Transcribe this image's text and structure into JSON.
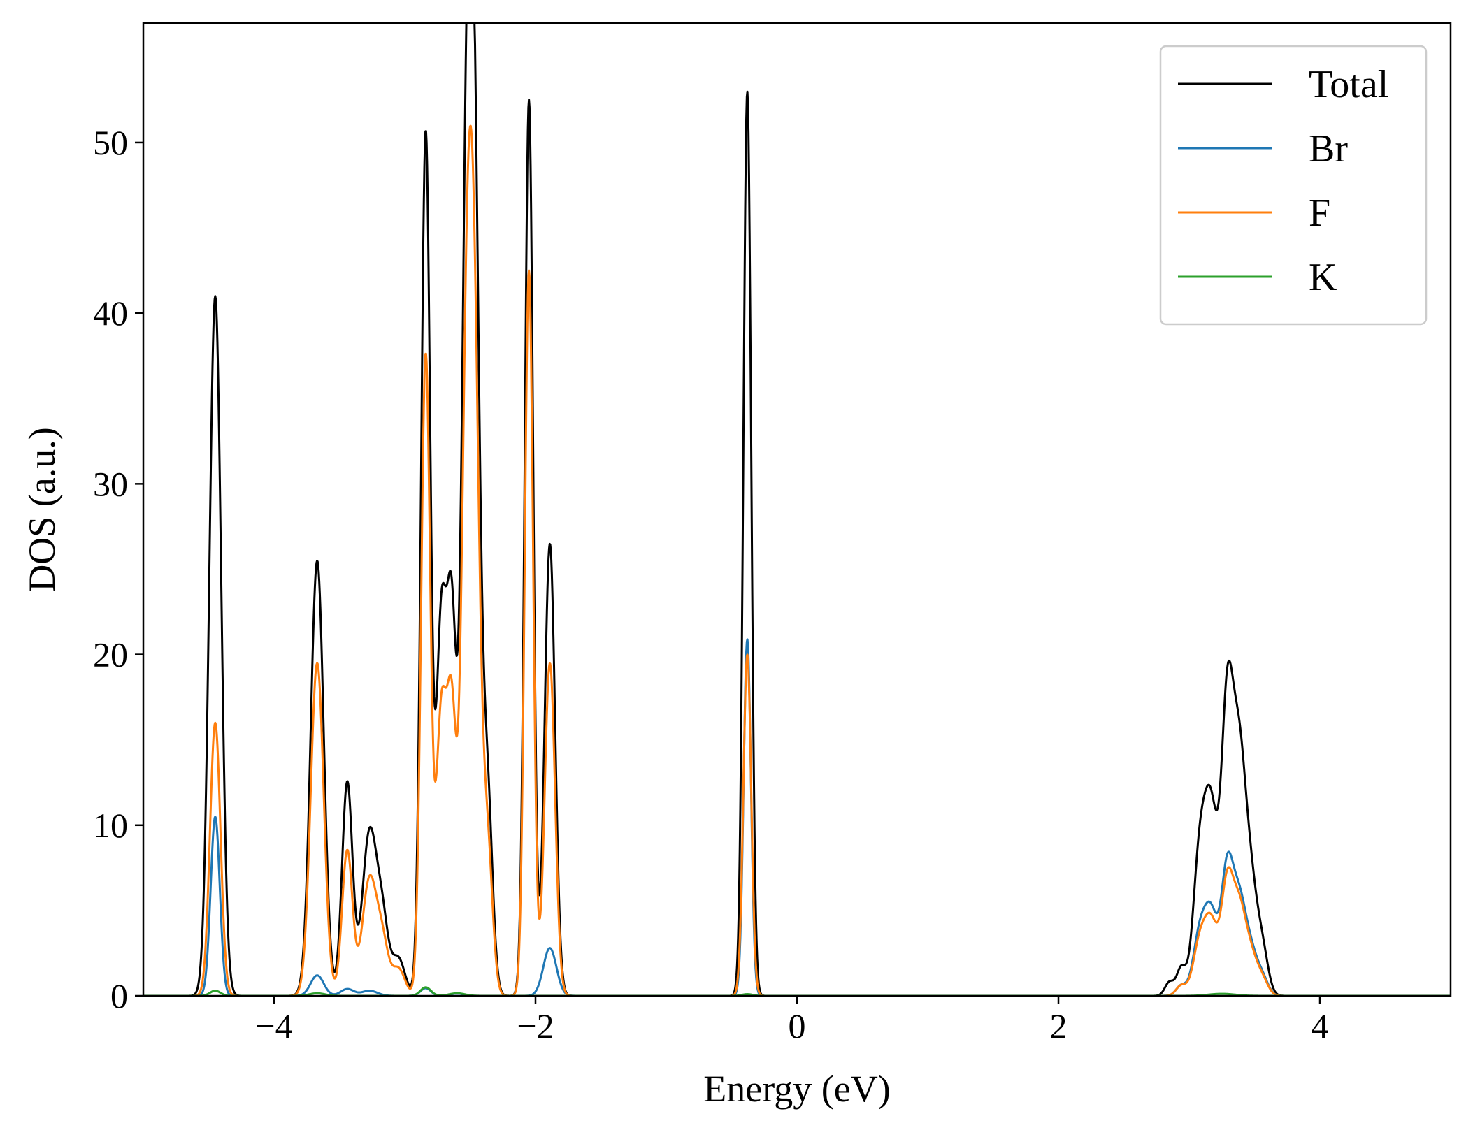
{
  "chart_data": {
    "type": "line",
    "title": "",
    "xlabel": "Energy (eV)",
    "ylabel": "DOS (a.u.)",
    "xlim": [
      -5,
      5
    ],
    "ylim": [
      0,
      57
    ],
    "grid": false,
    "legend_position": "top-right",
    "x_ticks": [
      -4,
      -2,
      0,
      2,
      4
    ],
    "x_tick_labels": [
      "−4",
      "−2",
      "0",
      "2",
      "4"
    ],
    "y_ticks": [
      0,
      10,
      20,
      30,
      40,
      50
    ],
    "y_tick_labels": [
      "0",
      "10",
      "20",
      "30",
      "40",
      "50"
    ],
    "series": [
      {
        "name": "Total",
        "color": "#000000",
        "peaks": [
          {
            "e": -4.45,
            "h": 41.0,
            "w": 0.045
          },
          {
            "e": -3.67,
            "h": 25.5,
            "w": 0.05
          },
          {
            "e": -3.44,
            "h": 12.5,
            "w": 0.04
          },
          {
            "e": -3.27,
            "h": 9.5,
            "w": 0.055
          },
          {
            "e": -3.17,
            "h": 4.0,
            "w": 0.045
          },
          {
            "e": -3.05,
            "h": 2.2,
            "w": 0.05
          },
          {
            "e": -2.84,
            "h": 50.5,
            "w": 0.035
          },
          {
            "e": -2.72,
            "h": 22.0,
            "w": 0.04
          },
          {
            "e": -2.64,
            "h": 20.5,
            "w": 0.035
          },
          {
            "e": -2.53,
            "h": 40.0,
            "w": 0.04
          },
          {
            "e": -2.47,
            "h": 46.0,
            "w": 0.042
          },
          {
            "e": -2.37,
            "h": 12.0,
            "w": 0.04
          },
          {
            "e": -2.05,
            "h": 52.5,
            "w": 0.032
          },
          {
            "e": -1.89,
            "h": 26.5,
            "w": 0.04
          },
          {
            "e": -0.38,
            "h": 53.0,
            "w": 0.03
          },
          {
            "e": 2.85,
            "h": 0.8,
            "w": 0.035
          },
          {
            "e": 2.94,
            "h": 1.6,
            "w": 0.035
          },
          {
            "e": 3.08,
            "h": 8.0,
            "w": 0.05
          },
          {
            "e": 3.17,
            "h": 10.0,
            "w": 0.05
          },
          {
            "e": 3.29,
            "h": 16.0,
            "w": 0.045
          },
          {
            "e": 3.38,
            "h": 13.0,
            "w": 0.05
          },
          {
            "e": 3.47,
            "h": 6.0,
            "w": 0.05
          },
          {
            "e": 3.56,
            "h": 2.5,
            "w": 0.045
          }
        ]
      },
      {
        "name": "Br",
        "color": "#1f77b4",
        "peaks": [
          {
            "e": -4.45,
            "h": 10.5,
            "w": 0.035
          },
          {
            "e": -3.67,
            "h": 1.2,
            "w": 0.05
          },
          {
            "e": -3.44,
            "h": 0.4,
            "w": 0.05
          },
          {
            "e": -3.27,
            "h": 0.3,
            "w": 0.06
          },
          {
            "e": -2.84,
            "h": 0.45,
            "w": 0.04
          },
          {
            "e": -1.89,
            "h": 2.8,
            "w": 0.05
          },
          {
            "e": -0.38,
            "h": 20.9,
            "w": 0.028
          },
          {
            "e": 2.94,
            "h": 0.6,
            "w": 0.04
          },
          {
            "e": 3.08,
            "h": 3.5,
            "w": 0.05
          },
          {
            "e": 3.17,
            "h": 4.5,
            "w": 0.05
          },
          {
            "e": 3.29,
            "h": 7.0,
            "w": 0.045
          },
          {
            "e": 3.38,
            "h": 5.2,
            "w": 0.05
          },
          {
            "e": 3.47,
            "h": 2.4,
            "w": 0.05
          },
          {
            "e": 3.56,
            "h": 1.0,
            "w": 0.045
          }
        ]
      },
      {
        "name": "F",
        "color": "#ff7f0e",
        "peaks": [
          {
            "e": -4.45,
            "h": 16.0,
            "w": 0.04
          },
          {
            "e": -3.67,
            "h": 19.5,
            "w": 0.05
          },
          {
            "e": -3.44,
            "h": 8.5,
            "w": 0.04
          },
          {
            "e": -3.27,
            "h": 6.8,
            "w": 0.055
          },
          {
            "e": -3.17,
            "h": 2.8,
            "w": 0.045
          },
          {
            "e": -3.05,
            "h": 1.6,
            "w": 0.05
          },
          {
            "e": -2.84,
            "h": 37.5,
            "w": 0.035
          },
          {
            "e": -2.72,
            "h": 16.5,
            "w": 0.04
          },
          {
            "e": -2.64,
            "h": 15.5,
            "w": 0.035
          },
          {
            "e": -2.53,
            "h": 31.0,
            "w": 0.04
          },
          {
            "e": -2.47,
            "h": 35.5,
            "w": 0.042
          },
          {
            "e": -2.37,
            "h": 9.0,
            "w": 0.04
          },
          {
            "e": -2.05,
            "h": 42.5,
            "w": 0.032
          },
          {
            "e": -1.89,
            "h": 19.5,
            "w": 0.04
          },
          {
            "e": -0.38,
            "h": 20.0,
            "w": 0.03
          },
          {
            "e": 2.94,
            "h": 0.6,
            "w": 0.04
          },
          {
            "e": 3.08,
            "h": 3.0,
            "w": 0.05
          },
          {
            "e": 3.17,
            "h": 4.0,
            "w": 0.05
          },
          {
            "e": 3.29,
            "h": 6.2,
            "w": 0.045
          },
          {
            "e": 3.38,
            "h": 4.8,
            "w": 0.05
          },
          {
            "e": 3.47,
            "h": 2.2,
            "w": 0.05
          },
          {
            "e": 3.56,
            "h": 0.9,
            "w": 0.045
          }
        ]
      },
      {
        "name": "K",
        "color": "#2ca02c",
        "peaks": [
          {
            "e": -4.45,
            "h": 0.3,
            "w": 0.04
          },
          {
            "e": -3.67,
            "h": 0.15,
            "w": 0.06
          },
          {
            "e": -2.84,
            "h": 0.5,
            "w": 0.04
          },
          {
            "e": -2.6,
            "h": 0.15,
            "w": 0.06
          },
          {
            "e": -0.38,
            "h": 0.1,
            "w": 0.04
          },
          {
            "e": 3.25,
            "h": 0.12,
            "w": 0.1
          }
        ]
      }
    ]
  }
}
